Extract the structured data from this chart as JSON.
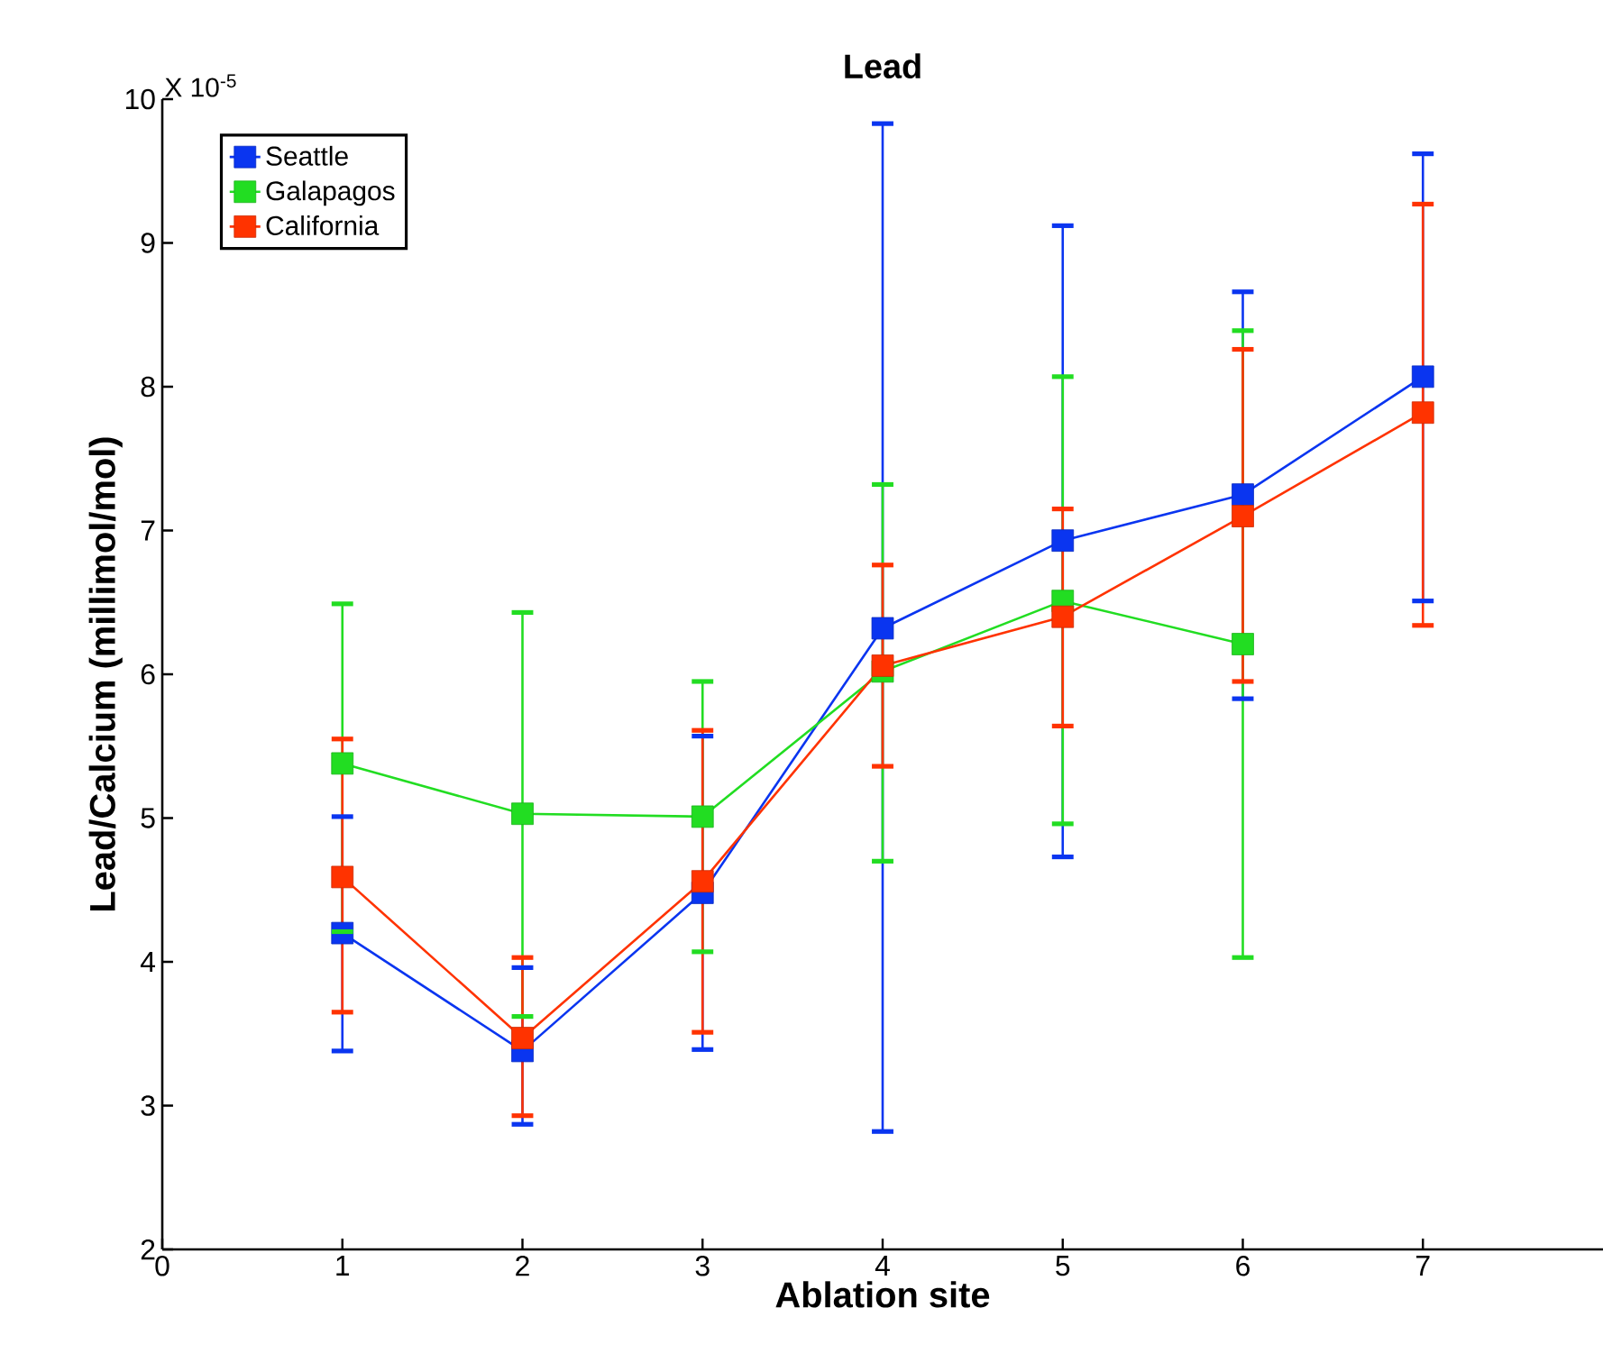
{
  "chart_data": {
    "type": "line",
    "title": "Lead",
    "xlabel": "Ablation site",
    "ylabel": "Lead/Calcium (millimol/mol)",
    "annotations": [
      "X 10$^{-5}$"
    ],
    "x": [
      1,
      2,
      3,
      4,
      5,
      6,
      7
    ],
    "series": [
      {
        "name": "Seattle",
        "color": "#0a35f0",
        "values": [
          4.2,
          3.38,
          4.48,
          6.32,
          6.93,
          7.25,
          8.07
        ],
        "errors": [
          [
            3.38,
            5.01
          ],
          [
            2.87,
            3.96
          ],
          [
            3.39,
            5.57
          ],
          [
            2.82,
            9.83
          ],
          [
            4.73,
            9.12
          ],
          [
            5.83,
            8.66
          ],
          [
            6.51,
            9.62
          ]
        ]
      },
      {
        "name": "Galapagos",
        "color": "#22dd22",
        "values": [
          5.38,
          5.03,
          5.01,
          6.02,
          6.51,
          6.21,
          null
        ],
        "errors": [
          [
            4.21,
            6.49
          ],
          [
            3.62,
            6.43
          ],
          [
            4.07,
            5.95
          ],
          [
            4.7,
            7.32
          ],
          [
            4.96,
            8.07
          ],
          [
            4.03,
            8.39
          ],
          null
        ]
      },
      {
        "name": "California",
        "color": "#ff3300",
        "values": [
          4.59,
          3.47,
          4.56,
          6.06,
          6.4,
          7.1,
          7.82
        ],
        "errors": [
          [
            3.65,
            5.55
          ],
          [
            2.93,
            4.03
          ],
          [
            3.51,
            5.61
          ],
          [
            5.36,
            6.76
          ],
          [
            5.64,
            7.15
          ],
          [
            5.95,
            8.26
          ],
          [
            6.34,
            9.27
          ]
        ]
      }
    ],
    "xlim": [
      0,
      8
    ],
    "ylim": [
      2,
      10
    ],
    "xticks": [
      0,
      1,
      2,
      3,
      4,
      5,
      6,
      7
    ],
    "yticks": [
      2,
      3,
      4,
      5,
      6,
      7,
      8,
      9,
      10
    ],
    "legend": "top left",
    "marker": "square",
    "line_style": "solid",
    "grid": false
  }
}
